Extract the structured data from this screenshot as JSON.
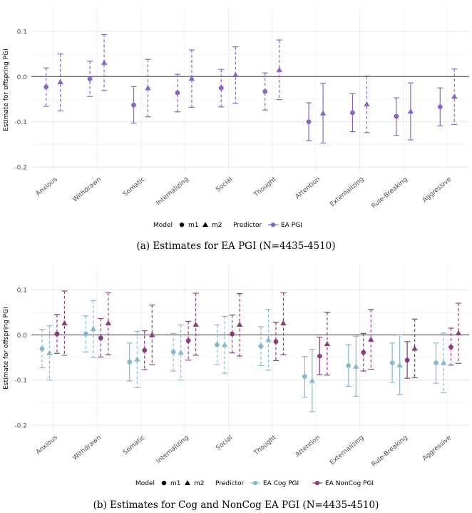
{
  "chart_data": [
    {
      "type": "scatter",
      "subtype": "point-range",
      "ylabel": "Estimate for offspring PGI",
      "ylim": [
        -0.2,
        0.1
      ],
      "yticks": [
        -0.2,
        -0.1,
        0.0,
        0.1
      ],
      "ytick_labels": [
        "-0.2",
        "-0.1",
        "0.0",
        "0.1"
      ],
      "categories": [
        "Anxious",
        "Withdrawn",
        "Somatic",
        "Internalizing",
        "Social",
        "Thought",
        "Attention",
        "Externalizing",
        "Rule-Breaking",
        "Aggressive"
      ],
      "legend": {
        "model_title": "Model",
        "models": [
          {
            "label": "m1",
            "shape": "circle"
          },
          {
            "label": "m2",
            "shape": "triangle"
          }
        ],
        "predictor_title": "Predictor",
        "predictors": [
          {
            "label": "EA PGI",
            "color": "#8a64c8"
          }
        ],
        "position": "bottom"
      },
      "series": [
        {
          "predictor": "EA PGI",
          "model": "m1",
          "color": "#8a64c8",
          "est": [
            -0.023,
            -0.005,
            -0.063,
            -0.036,
            -0.025,
            -0.033,
            -0.1,
            -0.08,
            -0.088,
            -0.067
          ],
          "lo95": [
            -0.066,
            -0.044,
            -0.103,
            -0.078,
            -0.067,
            -0.074,
            -0.142,
            -0.122,
            -0.13,
            -0.109
          ],
          "hi95": [
            0.019,
            0.034,
            -0.022,
            0.005,
            0.016,
            0.008,
            -0.058,
            -0.038,
            -0.047,
            -0.025
          ]
        },
        {
          "predictor": "EA PGI",
          "model": "m2",
          "color": "#8a64c8",
          "est": [
            -0.012,
            0.031,
            -0.025,
            -0.004,
            0.004,
            0.015,
            -0.081,
            -0.061,
            -0.077,
            -0.044
          ],
          "lo95": [
            -0.076,
            -0.031,
            -0.089,
            -0.068,
            -0.059,
            -0.051,
            -0.147,
            -0.124,
            -0.14,
            -0.106
          ],
          "hi95": [
            0.05,
            0.093,
            0.038,
            0.059,
            0.066,
            0.081,
            -0.015,
            0.001,
            -0.014,
            0.017
          ]
        }
      ],
      "caption": "(a) Estimates for EA PGI (N=4435-4510)"
    },
    {
      "type": "scatter",
      "subtype": "point-range",
      "ylabel": "Estimate for offspring PGI",
      "ylim": [
        -0.2,
        0.1
      ],
      "yticks": [
        -0.2,
        -0.1,
        0.0,
        0.1
      ],
      "ytick_labels": [
        "-0.2",
        "-0.1",
        "0.0",
        "0.1"
      ],
      "categories": [
        "Anxious",
        "Withdrawn",
        "Somatic",
        "Internalizing",
        "Social",
        "Thought",
        "Attention",
        "Externalizing",
        "Rule-Breaking",
        "Aggressive"
      ],
      "legend": {
        "model_title": "Model",
        "models": [
          {
            "label": "m1",
            "shape": "circle"
          },
          {
            "label": "m2",
            "shape": "triangle"
          }
        ],
        "predictor_title": "Predictor",
        "predictors": [
          {
            "label": "EA Cog PGI",
            "color": "#86b9d0"
          },
          {
            "label": "EA NonCog PGI",
            "color": "#8c3d7f"
          }
        ],
        "position": "bottom"
      },
      "series": [
        {
          "predictor": "EA Cog PGI",
          "model": "m1",
          "color": "#86b9d0",
          "est": [
            -0.031,
            0.002,
            -0.06,
            -0.038,
            -0.022,
            -0.025,
            -0.092,
            -0.068,
            -0.062,
            -0.062
          ],
          "lo95": [
            -0.073,
            -0.038,
            -0.102,
            -0.08,
            -0.066,
            -0.068,
            -0.138,
            -0.114,
            -0.105,
            -0.107
          ],
          "hi95": [
            0.012,
            0.042,
            -0.018,
            0.003,
            0.022,
            0.018,
            -0.048,
            -0.022,
            -0.018,
            -0.018
          ]
        },
        {
          "predictor": "EA Cog PGI",
          "model": "m2",
          "color": "#86b9d0",
          "est": [
            -0.04,
            0.013,
            -0.054,
            -0.039,
            -0.022,
            -0.011,
            -0.101,
            -0.07,
            -0.067,
            -0.062
          ],
          "lo95": [
            -0.1,
            -0.05,
            -0.117,
            -0.1,
            -0.085,
            -0.078,
            -0.17,
            -0.136,
            -0.132,
            -0.128
          ],
          "hi95": [
            0.02,
            0.076,
            0.008,
            0.022,
            0.041,
            0.056,
            -0.032,
            -0.003,
            0.0,
            0.004
          ]
        },
        {
          "predictor": "EA NonCog PGI",
          "model": "m1",
          "color": "#8c3d7f",
          "est": [
            0.002,
            -0.007,
            -0.034,
            -0.013,
            0.002,
            -0.015,
            -0.047,
            -0.039,
            -0.056,
            -0.027
          ],
          "lo95": [
            -0.041,
            -0.049,
            -0.077,
            -0.056,
            -0.04,
            -0.057,
            -0.088,
            -0.08,
            -0.096,
            -0.067
          ],
          "hi95": [
            0.045,
            0.036,
            0.009,
            0.03,
            0.044,
            0.028,
            -0.005,
            0.003,
            -0.015,
            0.015
          ]
        },
        {
          "predictor": "EA NonCog PGI",
          "model": "m2",
          "color": "#8c3d7f",
          "est": [
            0.026,
            0.026,
            0.0,
            0.023,
            0.023,
            0.026,
            -0.02,
            -0.01,
            -0.03,
            0.004
          ],
          "lo95": [
            -0.045,
            -0.044,
            -0.066,
            -0.045,
            -0.047,
            -0.044,
            -0.089,
            -0.076,
            -0.095,
            -0.063
          ],
          "hi95": [
            0.097,
            0.093,
            0.066,
            0.092,
            0.091,
            0.093,
            0.05,
            0.056,
            0.035,
            0.07
          ]
        }
      ],
      "caption": "(b) Estimates for Cog and NonCog EA PGI (N=4435-4510)"
    }
  ]
}
